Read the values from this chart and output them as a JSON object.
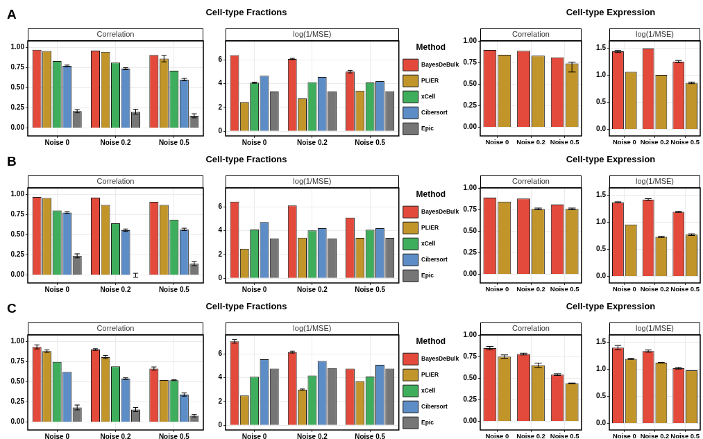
{
  "chart_data": [
    {
      "type": "bar",
      "title": "Correlation",
      "annotations": [
        "A",
        "Cell-type Fractions"
      ],
      "categories": [
        "Noise 0",
        "Noise 0.2",
        "Noise 0.5"
      ],
      "ylim": [
        -0.1,
        1.08
      ],
      "yticks": [
        {
          "value": 0,
          "label": "0.00"
        },
        {
          "value": 0.25,
          "label": "0.25"
        },
        {
          "value": 0.5,
          "label": "0.50"
        },
        {
          "value": 0.75,
          "label": "0.75"
        },
        {
          "value": 1,
          "label": "1.00"
        }
      ],
      "grid": true,
      "legend": false,
      "series": [
        {
          "color": "#e34a3b",
          "values": [
            0.97,
            0.96,
            0.905
          ],
          "errors": [
            null,
            null,
            null
          ]
        },
        {
          "color": "#c1952a",
          "values": [
            0.955,
            0.945,
            0.86
          ],
          "errors": [
            null,
            null,
            0.04
          ]
        },
        {
          "color": "#3fae5c",
          "values": [
            0.83,
            0.81,
            0.71
          ],
          "errors": [
            null,
            null,
            null
          ]
        },
        {
          "color": "#5d8dc6",
          "values": [
            0.77,
            0.735,
            0.6
          ],
          "errors": [
            0.01,
            0.012,
            0.015
          ]
        },
        {
          "color": "#767676",
          "values": [
            0.207,
            0.2,
            0.15
          ],
          "errors": [
            0.02,
            0.03,
            0.025
          ]
        }
      ]
    },
    {
      "type": "bar",
      "title": "log(1/MSE)",
      "categories": [
        "Noise 0",
        "Noise 0.2",
        "Noise 0.5"
      ],
      "ylim": [
        -0.4,
        7.6
      ],
      "yticks": [
        0,
        2,
        4,
        6
      ],
      "grid": true,
      "legend": "right",
      "legend_title": "Method",
      "series": [
        {
          "name": "BayesDeBulk",
          "color": "#e34a3b",
          "values": [
            6.4,
            6.08,
            5.01
          ],
          "errors": [
            null,
            0.05,
            0.1
          ]
        },
        {
          "name": "PLIER",
          "color": "#c1952a",
          "values": [
            2.45,
            2.75,
            3.41
          ],
          "errors": [
            null,
            null,
            null
          ]
        },
        {
          "name": "xCell",
          "color": "#3fae5c",
          "values": [
            4.08,
            4.12,
            4.1
          ],
          "errors": [
            0.05,
            null,
            null
          ]
        },
        {
          "name": "Cibersort",
          "color": "#5d8dc6",
          "values": [
            4.67,
            4.57,
            4.22
          ],
          "errors": [
            null,
            null,
            null
          ]
        },
        {
          "name": "Epic",
          "color": "#767676",
          "values": [
            3.33,
            3.37,
            3.37
          ],
          "errors": [
            null,
            null,
            null
          ]
        }
      ]
    },
    {
      "type": "bar",
      "title": "Correlation",
      "annotations": [
        "Cell-type Expression"
      ],
      "categories": [
        "Noise 0",
        "Noise 0.2",
        "Noise 0.5"
      ],
      "ylim": [
        -0.1,
        1.0
      ],
      "yticks": [
        {
          "value": 0,
          "label": "0.00"
        },
        {
          "value": 0.25,
          "label": "0.25"
        },
        {
          "value": 0.5,
          "label": "0.50"
        },
        {
          "value": 0.75,
          "label": "0.75"
        },
        {
          "value": 1,
          "label": "1.00"
        }
      ],
      "grid": true,
      "legend": false,
      "series": [
        {
          "color": "#e34a3b",
          "values": [
            0.895,
            0.885,
            0.81
          ],
          "errors": [
            null,
            null,
            null
          ]
        },
        {
          "color": "#c1952a",
          "values": [
            0.84,
            0.83,
            0.74
          ],
          "errors": [
            null,
            null,
            [
              0.64,
              0.755
            ]
          ]
        }
      ]
    },
    {
      "type": "bar",
      "title": "log(1/MSE)",
      "categories": [
        "Noise 0",
        "Noise 0.2",
        "Noise 0.5"
      ],
      "ylim": [
        -0.12,
        1.63
      ],
      "yticks": [
        {
          "value": 0,
          "label": "0.0"
        },
        {
          "value": 0.5,
          "label": "0.5"
        },
        {
          "value": 1,
          "label": "1.0"
        },
        {
          "value": 1.5,
          "label": "1.5"
        }
      ],
      "grid": true,
      "legend": false,
      "series": [
        {
          "color": "#e34a3b",
          "values": [
            1.437,
            1.488,
            1.25
          ],
          "errors": [
            0.02,
            null,
            0.02
          ]
        },
        {
          "color": "#c1952a",
          "values": [
            1.06,
            1.004,
            0.857
          ],
          "errors": [
            null,
            null,
            0.015
          ]
        }
      ]
    },
    {
      "type": "bar",
      "title": "Correlation",
      "annotations": [
        "B",
        "Cell-type Fractions"
      ],
      "categories": [
        "Noise 0",
        "Noise 0.2",
        "Noise 0.5"
      ],
      "ylim": [
        -0.1,
        1.08
      ],
      "yticks": [
        {
          "value": 0,
          "label": "0.00"
        },
        {
          "value": 0.25,
          "label": "0.25"
        },
        {
          "value": 0.5,
          "label": "0.50"
        },
        {
          "value": 0.75,
          "label": "0.75"
        },
        {
          "value": 1,
          "label": "1.00"
        }
      ],
      "grid": true,
      "legend": false,
      "series": [
        {
          "color": "#e34a3b",
          "values": [
            0.967,
            0.96,
            0.908
          ],
          "errors": [
            null,
            null,
            null
          ]
        },
        {
          "color": "#c1952a",
          "values": [
            0.955,
            0.87,
            0.87
          ],
          "errors": [
            null,
            null,
            null
          ]
        },
        {
          "color": "#3fae5c",
          "values": [
            0.8,
            0.64,
            0.685
          ],
          "errors": [
            null,
            null,
            null
          ]
        },
        {
          "color": "#5d8dc6",
          "values": [
            0.775,
            0.555,
            0.565
          ],
          "errors": [
            0.01,
            0.015,
            0.015
          ]
        },
        {
          "color": "#767676",
          "values": [
            0.237,
            -0.005,
            0.14
          ],
          "errors": [
            0.025,
            0.025,
            0.025
          ]
        }
      ]
    },
    {
      "type": "bar",
      "title": "log(1/MSE)",
      "categories": [
        "Noise 0",
        "Noise 0.2",
        "Noise 0.5"
      ],
      "ylim": [
        -0.4,
        7.6
      ],
      "yticks": [
        0,
        2,
        4,
        6
      ],
      "grid": true,
      "legend": "right",
      "legend_title": "Method",
      "series": [
        {
          "name": "BayesDeBulk",
          "color": "#e34a3b",
          "values": [
            6.44,
            6.12,
            5.11
          ],
          "errors": [
            null,
            null,
            null
          ]
        },
        {
          "name": "PLIER",
          "color": "#c1952a",
          "values": [
            2.48,
            3.41,
            3.39
          ],
          "errors": [
            null,
            null,
            null
          ]
        },
        {
          "name": "xCell",
          "color": "#3fae5c",
          "values": [
            4.1,
            4.02,
            4.08
          ],
          "errors": [
            null,
            null,
            null
          ]
        },
        {
          "name": "Cibersort",
          "color": "#5d8dc6",
          "values": [
            4.73,
            4.22,
            4.22
          ],
          "errors": [
            null,
            null,
            null
          ]
        },
        {
          "name": "Epic",
          "color": "#767676",
          "values": [
            3.35,
            3.35,
            3.39
          ],
          "errors": [
            null,
            null,
            null
          ]
        }
      ]
    },
    {
      "type": "bar",
      "title": "Correlation",
      "annotations": [
        "Cell-type Expression"
      ],
      "categories": [
        "Noise 0",
        "Noise 0.2",
        "Noise 0.5"
      ],
      "ylim": [
        -0.1,
        1.0
      ],
      "yticks": [
        {
          "value": 0,
          "label": "0.00"
        },
        {
          "value": 0.25,
          "label": "0.25"
        },
        {
          "value": 0.5,
          "label": "0.50"
        },
        {
          "value": 0.75,
          "label": "0.75"
        },
        {
          "value": 1,
          "label": "1.00"
        }
      ],
      "grid": true,
      "legend": false,
      "series": [
        {
          "color": "#e34a3b",
          "values": [
            0.887,
            0.877,
            0.807
          ],
          "errors": [
            null,
            null,
            null
          ]
        },
        {
          "color": "#c1952a",
          "values": [
            0.842,
            0.757,
            0.757
          ],
          "errors": [
            null,
            0.01,
            0.01
          ]
        }
      ]
    },
    {
      "type": "bar",
      "title": "log(1/MSE)",
      "categories": [
        "Noise 0",
        "Noise 0.2",
        "Noise 0.5"
      ],
      "ylim": [
        -0.12,
        1.63
      ],
      "yticks": [
        {
          "value": 0,
          "label": "0.0"
        },
        {
          "value": 0.5,
          "label": "0.5"
        },
        {
          "value": 1,
          "label": "1.0"
        },
        {
          "value": 1.5,
          "label": "1.5"
        }
      ],
      "grid": true,
      "legend": false,
      "series": [
        {
          "color": "#e34a3b",
          "values": [
            1.365,
            1.417,
            1.19
          ],
          "errors": [
            0.01,
            0.015,
            0.01
          ]
        },
        {
          "color": "#c1952a",
          "values": [
            0.956,
            0.73,
            0.77
          ],
          "errors": [
            null,
            0.01,
            0.015
          ]
        }
      ]
    },
    {
      "type": "bar",
      "title": "Correlation",
      "annotations": [
        "C",
        "Cell-type Fractions"
      ],
      "categories": [
        "Noise 0",
        "Noise 0.2",
        "Noise 0.5"
      ],
      "ylim": [
        -0.1,
        1.08
      ],
      "yticks": [
        {
          "value": 0,
          "label": "0.00"
        },
        {
          "value": 0.25,
          "label": "0.25"
        },
        {
          "value": 0.5,
          "label": "0.50"
        },
        {
          "value": 0.75,
          "label": "0.75"
        },
        {
          "value": 1,
          "label": "1.00"
        }
      ],
      "grid": true,
      "legend": false,
      "series": [
        {
          "color": "#e34a3b",
          "values": [
            0.932,
            0.899,
            0.663
          ],
          "errors": [
            0.025,
            0.01,
            0.02
          ]
        },
        {
          "color": "#c1952a",
          "values": [
            0.879,
            0.805,
            0.52
          ],
          "errors": [
            0.015,
            0.02,
            null
          ]
        },
        {
          "color": "#3fae5c",
          "values": [
            0.746,
            0.69,
            0.518
          ],
          "errors": [
            null,
            null,
            0.005
          ]
        },
        {
          "color": "#5d8dc6",
          "values": [
            0.621,
            0.538,
            0.34
          ],
          "errors": [
            null,
            0.01,
            0.02
          ]
        },
        {
          "color": "#767676",
          "values": [
            0.18,
            0.154,
            0.077
          ],
          "errors": [
            0.03,
            0.025,
            0.015
          ]
        }
      ]
    },
    {
      "type": "bar",
      "title": "log(1/MSE)",
      "categories": [
        "Noise 0",
        "Noise 0.2",
        "Noise 0.5"
      ],
      "ylim": [
        -0.4,
        7.6
      ],
      "yticks": [
        0,
        2,
        4,
        6
      ],
      "grid": true,
      "legend": "right",
      "legend_title": "Method",
      "series": [
        {
          "name": "BayesDeBulk",
          "color": "#e34a3b",
          "values": [
            7.06,
            6.16,
            4.77
          ],
          "errors": [
            0.15,
            0.08,
            null
          ]
        },
        {
          "name": "PLIER",
          "color": "#c1952a",
          "values": [
            2.5,
            3.0,
            3.7
          ],
          "errors": [
            null,
            0.05,
            null
          ]
        },
        {
          "name": "xCell",
          "color": "#3fae5c",
          "values": [
            4.08,
            4.18,
            4.1
          ],
          "errors": [
            null,
            null,
            null
          ]
        },
        {
          "name": "Cibersort",
          "color": "#5d8dc6",
          "values": [
            5.55,
            5.41,
            5.09
          ],
          "errors": [
            null,
            null,
            null
          ]
        },
        {
          "name": "Epic",
          "color": "#767676",
          "values": [
            4.77,
            4.81,
            4.77
          ],
          "errors": [
            null,
            null,
            null
          ]
        }
      ]
    },
    {
      "type": "bar",
      "title": "Correlation",
      "annotations": [
        "Cell-type Expression"
      ],
      "categories": [
        "Noise 0",
        "Noise 0.2",
        "Noise 0.5"
      ],
      "ylim": [
        -0.1,
        1.0
      ],
      "yticks": [
        {
          "value": 0,
          "label": "0.00"
        },
        {
          "value": 0.25,
          "label": "0.25"
        },
        {
          "value": 0.5,
          "label": "0.50"
        },
        {
          "value": 0.75,
          "label": "0.75"
        },
        {
          "value": 1,
          "label": "1.00"
        }
      ],
      "grid": true,
      "legend": false,
      "series": [
        {
          "color": "#e34a3b",
          "values": [
            0.847,
            0.779,
            0.541
          ],
          "errors": [
            0.02,
            0.01,
            0.01
          ]
        },
        {
          "color": "#c1952a",
          "values": [
            0.749,
            0.649,
            0.439
          ],
          "errors": [
            0.02,
            0.025,
            0.005
          ]
        }
      ]
    },
    {
      "type": "bar",
      "title": "log(1/MSE)",
      "categories": [
        "Noise 0",
        "Noise 0.2",
        "Noise 0.5"
      ],
      "ylim": [
        -0.12,
        1.63
      ],
      "yticks": [
        {
          "value": 0,
          "label": "0.0"
        },
        {
          "value": 0.5,
          "label": "0.5"
        },
        {
          "value": 1,
          "label": "1.0"
        },
        {
          "value": 1.5,
          "label": "1.5"
        }
      ],
      "grid": true,
      "legend": false,
      "series": [
        {
          "color": "#e34a3b",
          "values": [
            1.397,
            1.333,
            1.017
          ],
          "errors": [
            0.04,
            0.02,
            0.015
          ]
        },
        {
          "color": "#c1952a",
          "values": [
            1.19,
            1.12,
            0.977
          ],
          "errors": [
            0.01,
            0.005,
            null
          ]
        }
      ]
    }
  ]
}
